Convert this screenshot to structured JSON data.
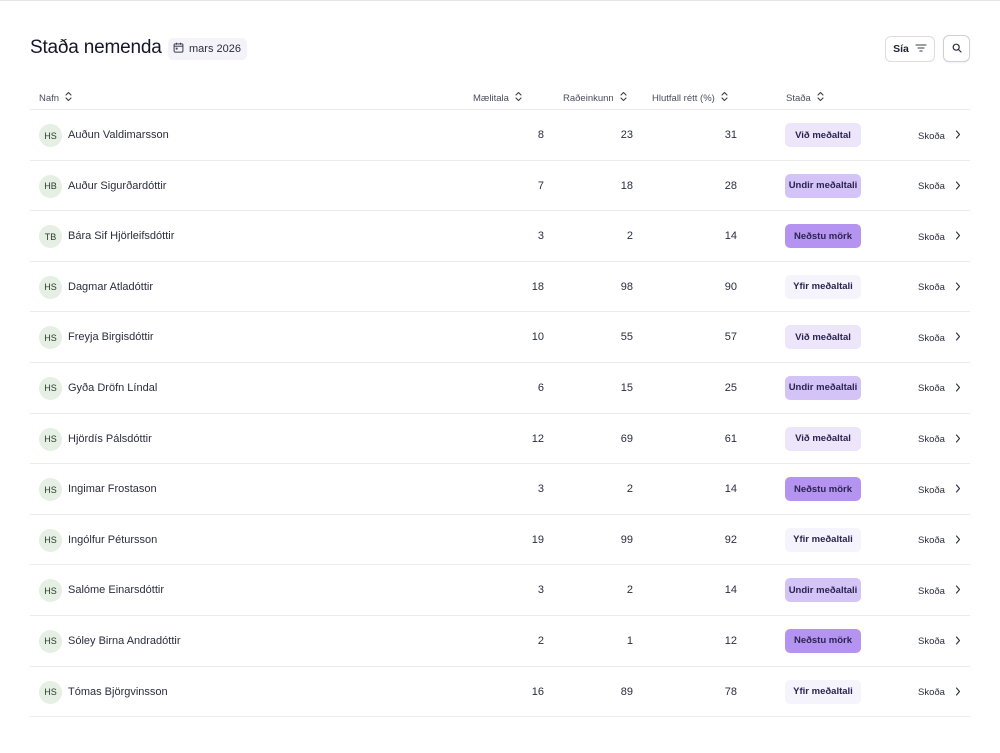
{
  "header": {
    "title": "Staða nemenda",
    "date": "mars 2026",
    "filter_label": "Sía"
  },
  "columns": {
    "name": "Nafn",
    "score": "Mælitala",
    "rank": "Raðeinkunn",
    "percent": "Hlutfall rétt (%)",
    "status": "Staða"
  },
  "view_label": "Skoða",
  "students": [
    {
      "initials": "HS",
      "name": "Auðun Valdimarsson",
      "score": "8",
      "rank": "23",
      "percent": "31",
      "status": "Við meðaltal",
      "kind": "vid"
    },
    {
      "initials": "HB",
      "name": "Auður Sigurðardóttir",
      "score": "7",
      "rank": "18",
      "percent": "28",
      "status": "Undir meðaltali",
      "kind": "undir"
    },
    {
      "initials": "TB",
      "name": "Bára Sif Hjörleifsdóttir",
      "score": "3",
      "rank": "2",
      "percent": "14",
      "status": "Neðstu mörk",
      "kind": "nedstu"
    },
    {
      "initials": "HS",
      "name": "Dagmar Atladóttir",
      "score": "18",
      "rank": "98",
      "percent": "90",
      "status": "Yfir meðaltali",
      "kind": "yfir"
    },
    {
      "initials": "HS",
      "name": "Freyja Birgisdóttir",
      "score": "10",
      "rank": "55",
      "percent": "57",
      "status": "Við meðaltal",
      "kind": "vid"
    },
    {
      "initials": "HS",
      "name": "Gyða Dröfn Líndal",
      "score": "6",
      "rank": "15",
      "percent": "25",
      "status": "Undir meðaltali",
      "kind": "undir"
    },
    {
      "initials": "HS",
      "name": "Hjördís Pálsdóttir",
      "score": "12",
      "rank": "69",
      "percent": "61",
      "status": "Við meðaltal",
      "kind": "vid"
    },
    {
      "initials": "HS",
      "name": "Ingimar Frostason",
      "score": "3",
      "rank": "2",
      "percent": "14",
      "status": "Neðstu mörk",
      "kind": "nedstu"
    },
    {
      "initials": "HS",
      "name": "Ingólfur Pétursson",
      "score": "19",
      "rank": "99",
      "percent": "92",
      "status": "Yfir meðaltali",
      "kind": "yfir"
    },
    {
      "initials": "HS",
      "name": "Salóme Einarsdóttir",
      "score": "3",
      "rank": "2",
      "percent": "14",
      "status": "Undir meðaltali",
      "kind": "undir"
    },
    {
      "initials": "HS",
      "name": "Sóley Birna Andradóttir",
      "score": "2",
      "rank": "1",
      "percent": "12",
      "status": "Neðstu mörk",
      "kind": "nedstu"
    },
    {
      "initials": "HS",
      "name": "Tómas Björgvinsson",
      "score": "16",
      "rank": "89",
      "percent": "78",
      "status": "Yfir meðaltali",
      "kind": "yfir"
    }
  ]
}
